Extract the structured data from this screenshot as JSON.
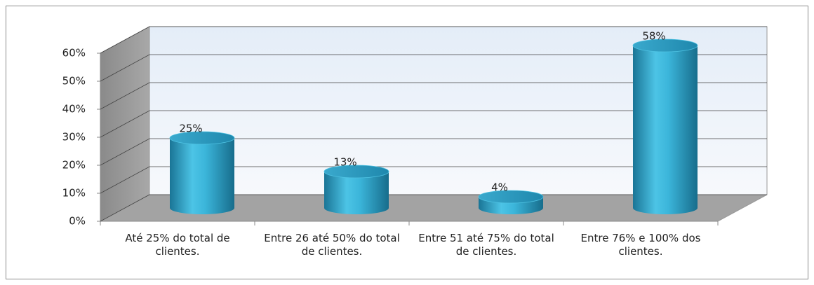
{
  "chart_data": {
    "type": "bar",
    "categories": [
      "Até 25% do total de clientes.",
      "Entre 26 até 50% do total de clientes.",
      "Entre 51 até 75% do total de clientes.",
      "Entre 76% e 100% dos clientes."
    ],
    "values": [
      25,
      13,
      4,
      58
    ],
    "value_labels": [
      "25%",
      "13%",
      "4%",
      "58%"
    ],
    "color": "#2aa6cc",
    "ylim": [
      0,
      60
    ],
    "yticks": [
      {
        "value": 0,
        "label": "0%"
      },
      {
        "value": 10,
        "label": "10%"
      },
      {
        "value": 20,
        "label": "20%"
      },
      {
        "value": 30,
        "label": "30%"
      },
      {
        "value": 40,
        "label": "40%"
      },
      {
        "value": 50,
        "label": "50%"
      },
      {
        "value": 60,
        "label": "60%"
      }
    ],
    "grid": true
  }
}
